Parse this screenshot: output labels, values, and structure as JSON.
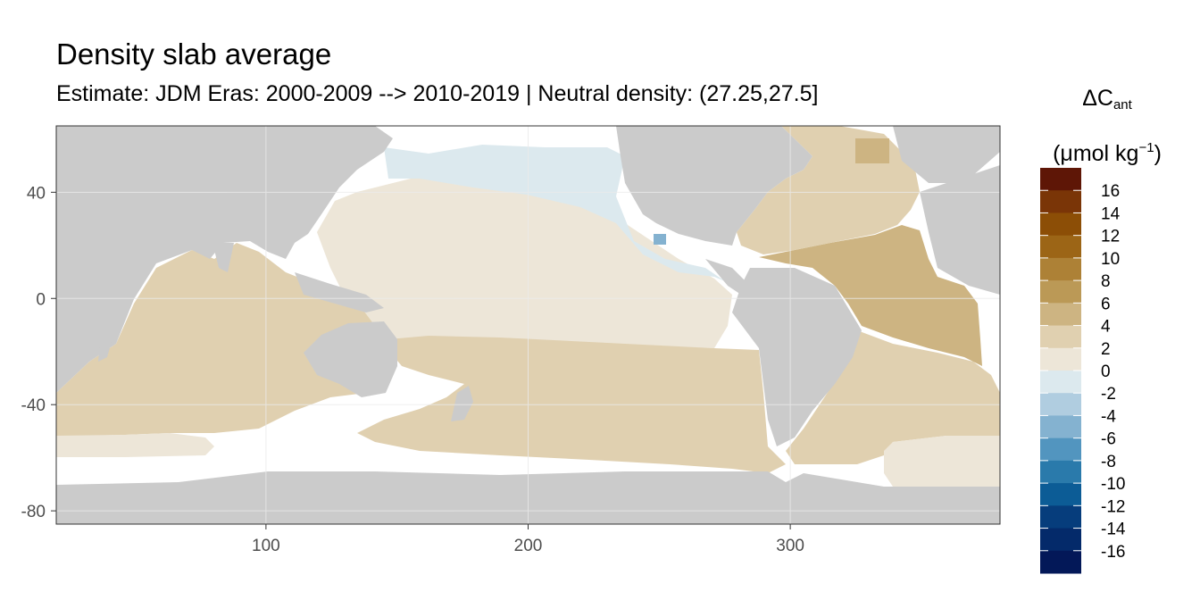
{
  "title": "Density slab average",
  "subtitle": "Estimate: JDM Eras: 2000-2009 --> 2010-2019 | Neutral density: (27.25,27.5]",
  "legend": {
    "title_delta": "ΔC",
    "title_sub": "ant",
    "unit_prefix": "(μmol kg",
    "unit_sup": "−1",
    "unit_suffix": ")",
    "labels": [
      "16",
      "14",
      "12",
      "10",
      "8",
      "6",
      "4",
      "2",
      "0",
      "-2",
      "-4",
      "-6",
      "-8",
      "-10",
      "-12",
      "-14",
      "-16"
    ],
    "colors": [
      "#5e1606",
      "#7a3507",
      "#8c4e06",
      "#9c6516",
      "#ad8136",
      "#bb9956",
      "#cdb482",
      "#e0d0b0",
      "#ede6d8",
      "#dce9ee",
      "#b0cde0",
      "#84b2d0",
      "#5295bf",
      "#2a7aab",
      "#0c5c96",
      "#063d7c",
      "#042a6a",
      "#031858"
    ]
  },
  "axes": {
    "x_ticks": [
      100,
      200,
      300
    ],
    "y_ticks": [
      40,
      0,
      -40,
      -80
    ],
    "xlim": [
      20,
      380
    ],
    "ylim": [
      -85,
      65
    ]
  },
  "colors": {
    "land": "#cbcbcb",
    "no_data": "#ffffff",
    "grid": "#ebebeb"
  }
}
